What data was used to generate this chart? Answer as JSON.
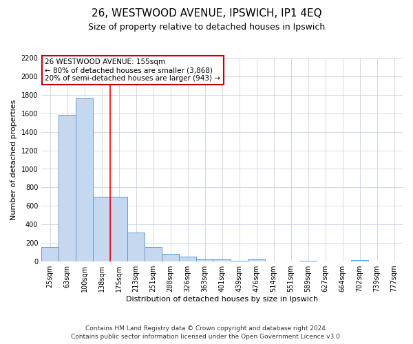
{
  "title": "26, WESTWOOD AVENUE, IPSWICH, IP1 4EQ",
  "subtitle": "Size of property relative to detached houses in Ipswich",
  "xlabel": "Distribution of detached houses by size in Ipswich",
  "ylabel": "Number of detached properties",
  "bar_labels": [
    "25sqm",
    "63sqm",
    "100sqm",
    "138sqm",
    "175sqm",
    "213sqm",
    "251sqm",
    "288sqm",
    "326sqm",
    "363sqm",
    "401sqm",
    "439sqm",
    "476sqm",
    "514sqm",
    "551sqm",
    "589sqm",
    "627sqm",
    "664sqm",
    "702sqm",
    "739sqm",
    "777sqm"
  ],
  "bar_values": [
    160,
    1580,
    1760,
    700,
    700,
    315,
    155,
    85,
    50,
    25,
    20,
    10,
    20,
    0,
    0,
    10,
    0,
    0,
    15,
    0,
    0
  ],
  "bar_color": "#c5d8f0",
  "bar_edge_color": "#5b9bd5",
  "red_line_x": 3.5,
  "annotation_title": "26 WESTWOOD AVENUE: 155sqm",
  "annotation_line1": "← 80% of detached houses are smaller (3,868)",
  "annotation_line2": "20% of semi-detached houses are larger (943) →",
  "annotation_box_edge": "#c00000",
  "ylim": [
    0,
    2200
  ],
  "yticks": [
    0,
    200,
    400,
    600,
    800,
    1000,
    1200,
    1400,
    1600,
    1800,
    2000,
    2200
  ],
  "footer1": "Contains HM Land Registry data © Crown copyright and database right 2024.",
  "footer2": "Contains public sector information licensed under the Open Government Licence v3.0.",
  "bg_color": "#ffffff",
  "grid_color": "#d0d8e8",
  "title_fontsize": 11,
  "subtitle_fontsize": 9,
  "axis_label_fontsize": 8,
  "tick_fontsize": 7,
  "annotation_fontsize": 7.5,
  "footer_fontsize": 6.5
}
